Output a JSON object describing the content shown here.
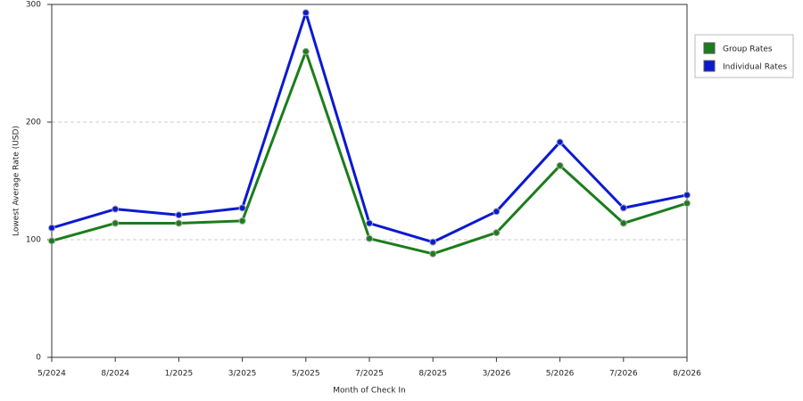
{
  "chart_data": {
    "type": "line",
    "x_label": "Month of Check In",
    "y_label": "Lowest Average Rate (USD)",
    "categories": [
      "5/2024",
      "8/2024",
      "1/2025",
      "3/2025",
      "5/2025",
      "7/2025",
      "8/2025",
      "3/2026",
      "5/2026",
      "7/2026",
      "8/2026"
    ],
    "series": [
      {
        "name": "Group Rates",
        "color": "#1b7d1b",
        "values": [
          99,
          114,
          114,
          116,
          260,
          101,
          88,
          106,
          163,
          114,
          131
        ]
      },
      {
        "name": "Individual Rates",
        "color": "#0b1ad0",
        "values": [
          110,
          126,
          121,
          127,
          293,
          114,
          98,
          124,
          183,
          127,
          138
        ]
      }
    ],
    "ylim": [
      0,
      300
    ],
    "yticks": [
      0,
      100,
      200,
      300
    ],
    "grid": true,
    "legend": "right"
  }
}
